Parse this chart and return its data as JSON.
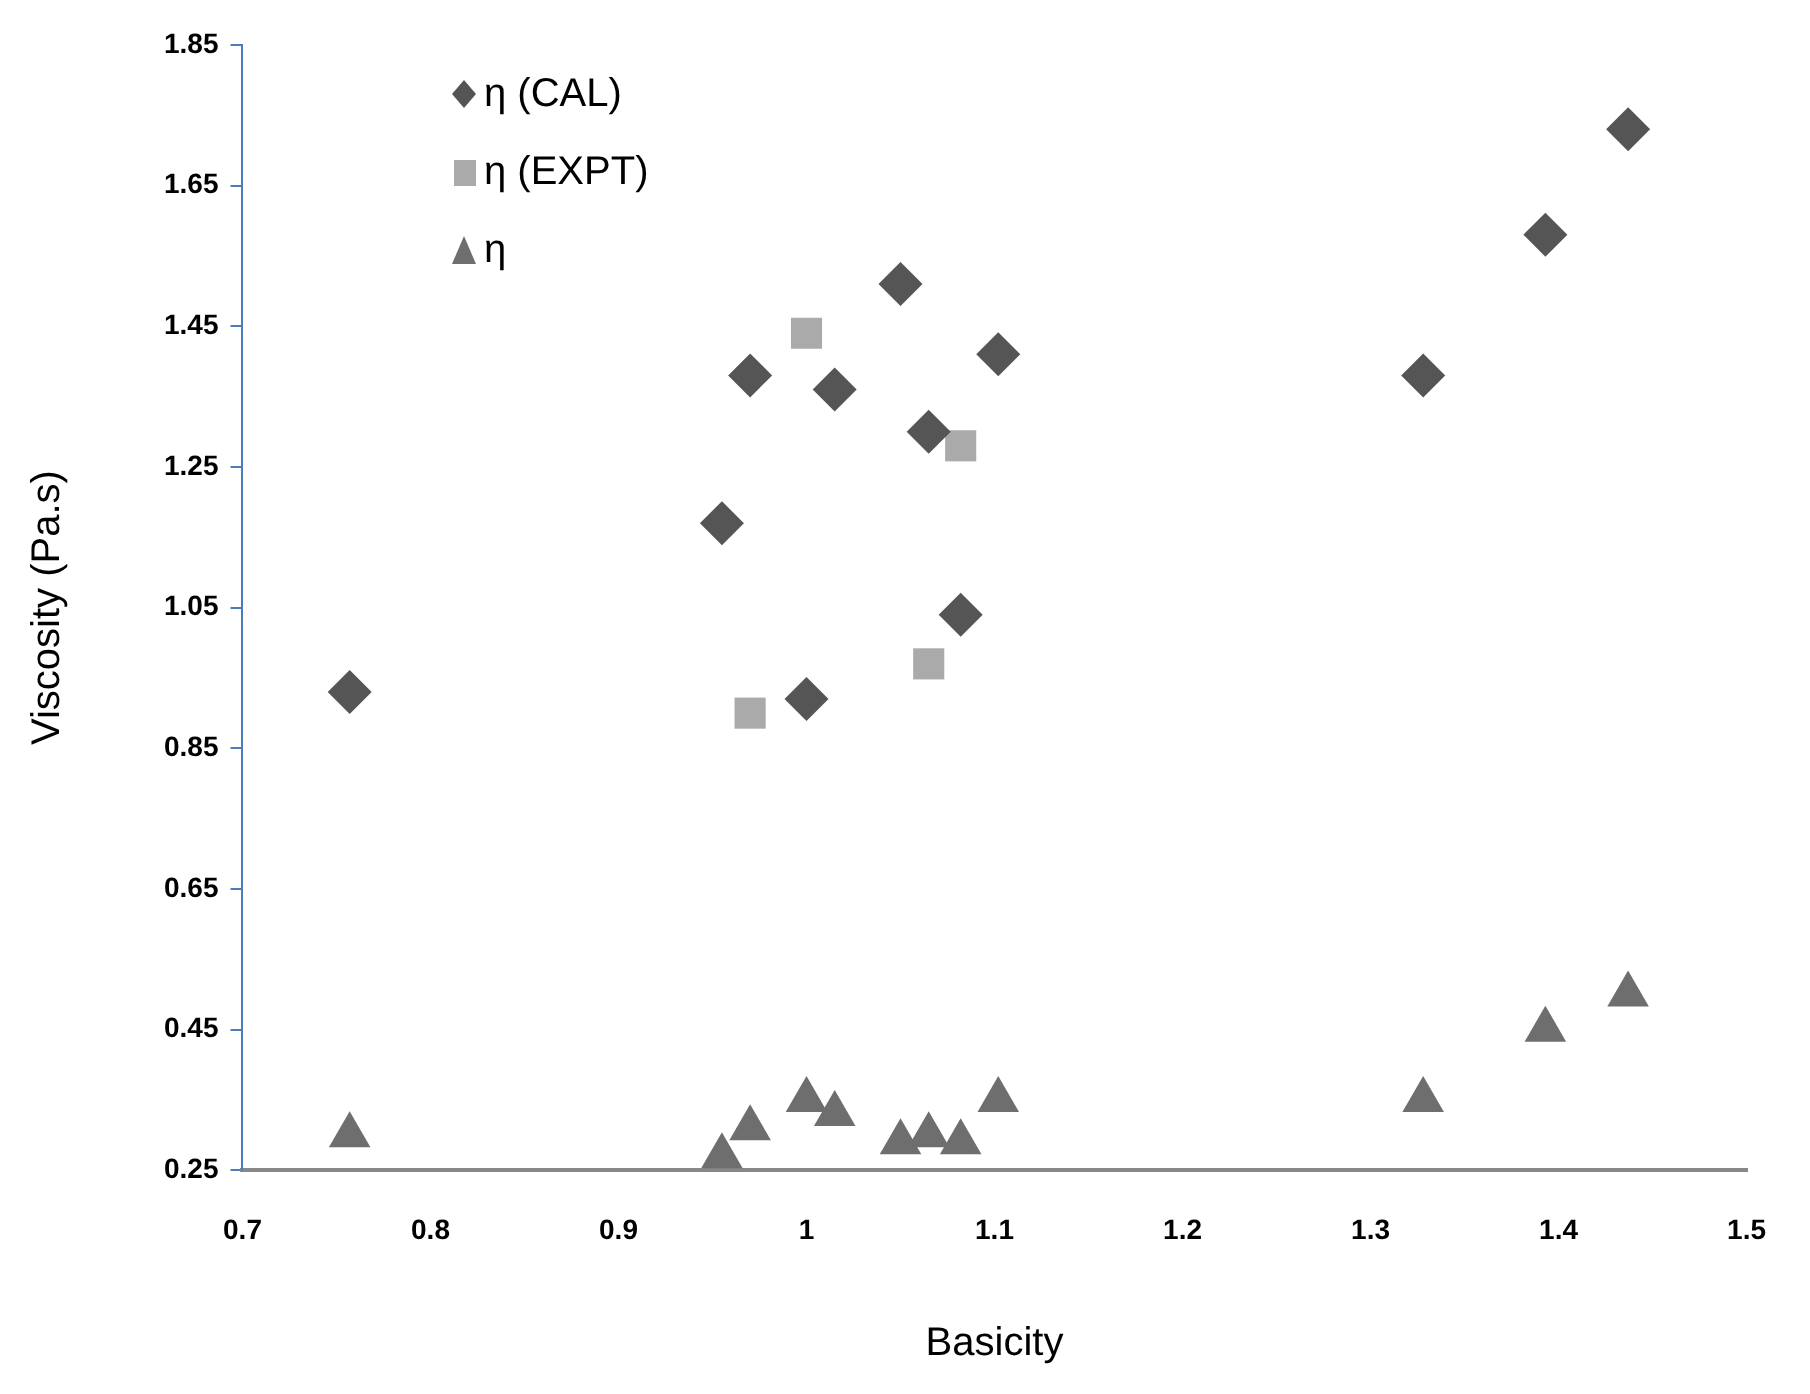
{
  "chart_data": {
    "type": "scatter",
    "xlabel": "Basicity",
    "ylabel": "Viscosity (Pa.s)",
    "xlim": [
      0.7,
      1.5
    ],
    "xticks": [
      0.7,
      0.8,
      0.9,
      1,
      1.1,
      1.2,
      1.3,
      1.4,
      1.5
    ],
    "ylim": [
      0.25,
      1.85
    ],
    "yticks": [
      0.25,
      0.45,
      0.65,
      0.85,
      1.05,
      1.25,
      1.45,
      1.65,
      1.85
    ],
    "grid": false,
    "legend": "top left",
    "series": [
      {
        "name": "η (CAL)",
        "color": "#555555",
        "marker": "diamond",
        "x": [
          0.757,
          0.955,
          0.97,
          1.0,
          1.015,
          1.05,
          1.065,
          1.082,
          1.102,
          1.328,
          1.393,
          1.437
        ],
        "values": [
          0.93,
          1.17,
          1.38,
          0.92,
          1.36,
          1.51,
          1.3,
          1.04,
          1.41,
          1.38,
          1.58,
          1.73
        ]
      },
      {
        "name": "η (EXPT)",
        "color": "#aaaaaa",
        "marker": "square",
        "x": [
          0.97,
          1.0,
          1.065,
          1.082
        ],
        "values": [
          0.9,
          1.44,
          0.97,
          1.28
        ]
      },
      {
        "name": "η",
        "color": "#6e6e6e",
        "marker": "triangle",
        "x": [
          0.757,
          0.955,
          0.97,
          1.0,
          1.015,
          1.05,
          1.065,
          1.082,
          1.102,
          1.328,
          1.393,
          1.437
        ],
        "values": [
          0.3,
          0.27,
          0.31,
          0.35,
          0.33,
          0.29,
          0.3,
          0.29,
          0.35,
          0.35,
          0.45,
          0.5
        ]
      }
    ]
  }
}
